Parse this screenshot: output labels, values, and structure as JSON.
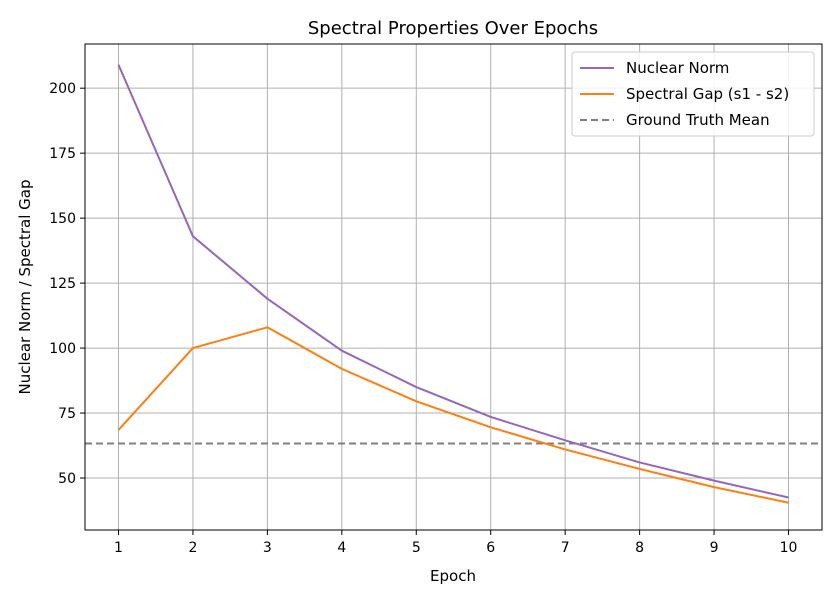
{
  "chart_data": {
    "type": "line",
    "title": "Spectral Properties Over Epochs",
    "xlabel": "Epoch",
    "ylabel": "Nuclear Norm / Spectral Gap",
    "x": [
      1,
      2,
      3,
      4,
      5,
      6,
      7,
      8,
      9,
      10
    ],
    "xlim": [
      0.55,
      10.45
    ],
    "ylim": [
      30,
      217
    ],
    "yticks": [
      50,
      75,
      100,
      125,
      150,
      175,
      200
    ],
    "grid": true,
    "legend_position": "top-right",
    "series": [
      {
        "name": "Nuclear Norm",
        "color": "#9467bd",
        "style": "solid",
        "values": [
          209,
          143,
          119,
          99,
          85,
          73.5,
          64.5,
          56,
          49,
          42.5
        ]
      },
      {
        "name": "Spectral Gap (s1 - s2)",
        "color": "#ff7f0e",
        "style": "solid",
        "values": [
          68.5,
          100,
          108,
          92,
          79.5,
          69.5,
          61,
          53.5,
          46.5,
          40.5
        ]
      }
    ],
    "reference_lines": [
      {
        "name": "Ground Truth Mean",
        "color": "#808080",
        "style": "dashed",
        "y": 63.3
      }
    ]
  }
}
